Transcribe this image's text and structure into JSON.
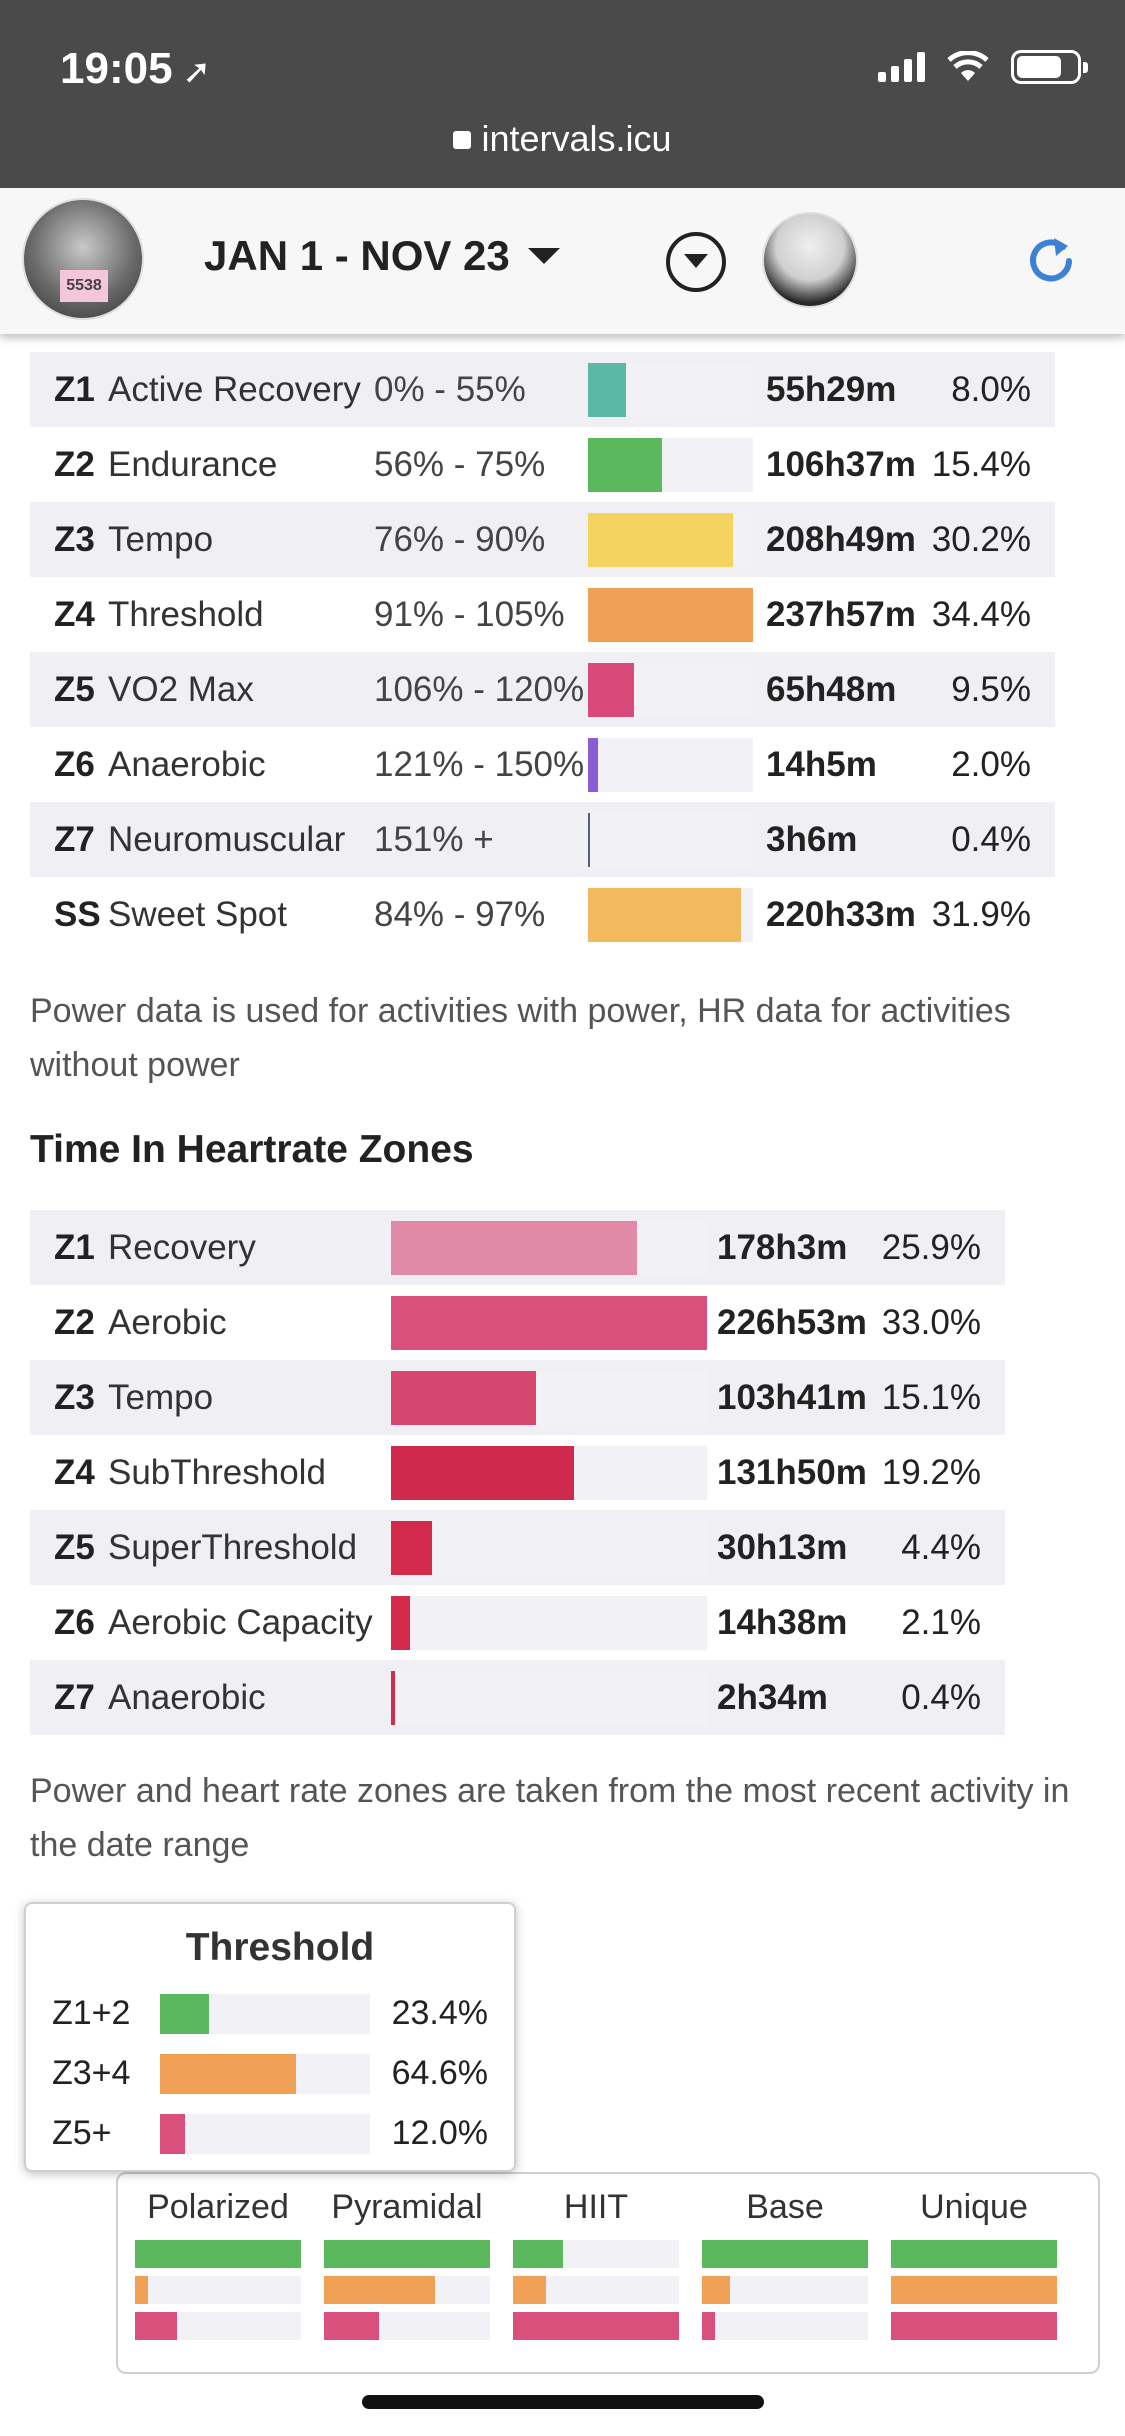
{
  "status_bar": {
    "time": "19:05"
  },
  "browser": {
    "url": "intervals.icu"
  },
  "header": {
    "date_range": "JAN 1 - NOV 23"
  },
  "icons": [
    "location-arrow-icon",
    "signal-icon",
    "wifi-icon",
    "battery-icon",
    "lock-icon",
    "caret-down-icon",
    "filter-icon",
    "refresh-icon"
  ],
  "colors": {
    "accent": "#3b82d6",
    "refresh": "#3b82d6"
  },
  "power_zones": [
    {
      "code": "Z1",
      "name": "Active Recovery",
      "range": "0% - 55%",
      "fraction": 0.23,
      "color": "#5bb8a4",
      "time": "55h29m",
      "pct": "8.0%"
    },
    {
      "code": "Z2",
      "name": "Endurance",
      "range": "56% - 75%",
      "fraction": 0.45,
      "color": "#5cb85c",
      "time": "106h37m",
      "pct": "15.4%"
    },
    {
      "code": "Z3",
      "name": "Tempo",
      "range": "76% - 90%",
      "fraction": 0.88,
      "color": "#f4d35e",
      "time": "208h49m",
      "pct": "30.2%"
    },
    {
      "code": "Z4",
      "name": "Threshold",
      "range": "91% - 105%",
      "fraction": 1.0,
      "color": "#f0a155",
      "time": "237h57m",
      "pct": "34.4%"
    },
    {
      "code": "Z5",
      "name": "VO2 Max",
      "range": "106% - 120%",
      "fraction": 0.28,
      "color": "#d9497a",
      "time": "65h48m",
      "pct": "9.5%"
    },
    {
      "code": "Z6",
      "name": "Anaerobic",
      "range": "121% - 150%",
      "fraction": 0.06,
      "color": "#8a5cd6",
      "time": "14h5m",
      "pct": "2.0%"
    },
    {
      "code": "Z7",
      "name": "Neuromuscular",
      "range": "151% +",
      "fraction": 0.015,
      "color": "#556070",
      "time": "3h6m",
      "pct": "0.4%"
    },
    {
      "code": "SS",
      "name": "Sweet Spot",
      "range": "84% - 97%",
      "fraction": 0.93,
      "color": "#f2b95e",
      "time": "220h33m",
      "pct": "31.9%"
    }
  ],
  "notes": {
    "power_hr": "Power data is used for activities with power, HR data for activities without power",
    "zones_source": "Power and heart rate zones are taken from the most recent activity in the date range"
  },
  "hr_section": {
    "title": "Time In Heartrate Zones"
  },
  "hr_zones": [
    {
      "code": "Z1",
      "name": "Recovery",
      "fraction": 0.78,
      "color": "#e08aa8",
      "time": "178h3m",
      "pct": "25.9%"
    },
    {
      "code": "Z2",
      "name": "Aerobic",
      "fraction": 1.0,
      "color": "#d9507d",
      "time": "226h53m",
      "pct": "33.0%"
    },
    {
      "code": "Z3",
      "name": "Tempo",
      "fraction": 0.46,
      "color": "#d6466e",
      "time": "103h41m",
      "pct": "15.1%"
    },
    {
      "code": "Z4",
      "name": "SubThreshold",
      "fraction": 0.58,
      "color": "#cf2a4d",
      "time": "131h50m",
      "pct": "19.2%"
    },
    {
      "code": "Z5",
      "name": "SuperThreshold",
      "fraction": 0.13,
      "color": "#d42a4c",
      "time": "30h13m",
      "pct": "4.4%"
    },
    {
      "code": "Z6",
      "name": "Aerobic Capacity",
      "fraction": 0.06,
      "color": "#d42a4c",
      "time": "14h38m",
      "pct": "2.1%"
    },
    {
      "code": "Z7",
      "name": "Anaerobic",
      "fraction": 0.012,
      "color": "#d42a4c",
      "time": "2h34m",
      "pct": "0.4%"
    }
  ],
  "threshold_card": {
    "title": "Threshold",
    "rows": [
      {
        "label": "Z1+2",
        "fraction": 0.234,
        "color": "#5cb85c",
        "value": "23.4%"
      },
      {
        "label": "Z3+4",
        "fraction": 0.646,
        "color": "#f0a155",
        "value": "64.6%"
      },
      {
        "label": "Z5+",
        "fraction": 0.12,
        "color": "#d9507d",
        "value": "12.0%"
      }
    ]
  },
  "polarization_models": [
    {
      "label": "Polarized",
      "bars": [
        {
          "fraction": 1.0,
          "color": "#5cb85c"
        },
        {
          "fraction": 0.08,
          "color": "#f0a155"
        },
        {
          "fraction": 0.25,
          "color": "#d9507d"
        }
      ]
    },
    {
      "label": "Pyramidal",
      "bars": [
        {
          "fraction": 1.0,
          "color": "#5cb85c"
        },
        {
          "fraction": 0.67,
          "color": "#f0a155"
        },
        {
          "fraction": 0.33,
          "color": "#d9507d"
        }
      ]
    },
    {
      "label": "HIIT",
      "bars": [
        {
          "fraction": 0.3,
          "color": "#5cb85c"
        },
        {
          "fraction": 0.2,
          "color": "#f0a155"
        },
        {
          "fraction": 1.0,
          "color": "#d9507d"
        }
      ]
    },
    {
      "label": "Base",
      "bars": [
        {
          "fraction": 1.0,
          "color": "#5cb85c"
        },
        {
          "fraction": 0.17,
          "color": "#f0a155"
        },
        {
          "fraction": 0.08,
          "color": "#d9507d"
        }
      ]
    },
    {
      "label": "Unique",
      "bars": [
        {
          "fraction": 1.0,
          "color": "#5cb85c"
        },
        {
          "fraction": 1.0,
          "color": "#f0a155"
        },
        {
          "fraction": 1.0,
          "color": "#d9507d"
        }
      ]
    }
  ]
}
